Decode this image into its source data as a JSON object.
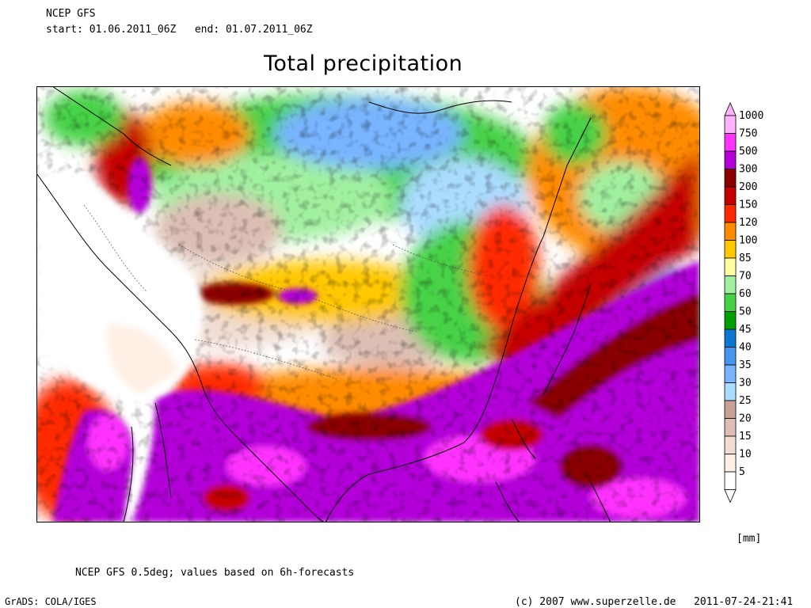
{
  "header": {
    "source": "NCEP GFS",
    "start_label": "start:",
    "start": "01.06.2011_06Z",
    "end_label": "end:",
    "end": "01.07.2011_06Z",
    "title": "Total precipitation"
  },
  "legend": {
    "unit": "[mm]",
    "levels": [
      {
        "label": "1000",
        "color": "#ffb3ff"
      },
      {
        "label": "750",
        "color": "#ff33ff"
      },
      {
        "label": "500",
        "color": "#b300d9"
      },
      {
        "label": "300",
        "color": "#8a0000"
      },
      {
        "label": "200",
        "color": "#c40000"
      },
      {
        "label": "150",
        "color": "#ff2a00"
      },
      {
        "label": "120",
        "color": "#ff8c00"
      },
      {
        "label": "100",
        "color": "#ffc800"
      },
      {
        "label": "85",
        "color": "#ffffa0"
      },
      {
        "label": "70",
        "color": "#a0f0a0"
      },
      {
        "label": "60",
        "color": "#46d246"
      },
      {
        "label": "50",
        "color": "#00a000"
      },
      {
        "label": "45",
        "color": "#0a78d2"
      },
      {
        "label": "40",
        "color": "#4696f0"
      },
      {
        "label": "35",
        "color": "#78b4ff"
      },
      {
        "label": "30",
        "color": "#aadcff"
      },
      {
        "label": "25",
        "color": "#c8a096"
      },
      {
        "label": "20",
        "color": "#dcbeb4"
      },
      {
        "label": "15",
        "color": "#f0dcd2"
      },
      {
        "label": "10",
        "color": "#fff0e6"
      },
      {
        "label": "5",
        "color": "#ffffff"
      }
    ]
  },
  "footer": {
    "note": "NCEP GFS 0.5deg; values based on 6h-forecasts",
    "engine": "GrADS: COLA/IGES",
    "copyright": "(c) 2007 www.superzelle.de",
    "timestamp": "2011-07-24-21:41"
  }
}
